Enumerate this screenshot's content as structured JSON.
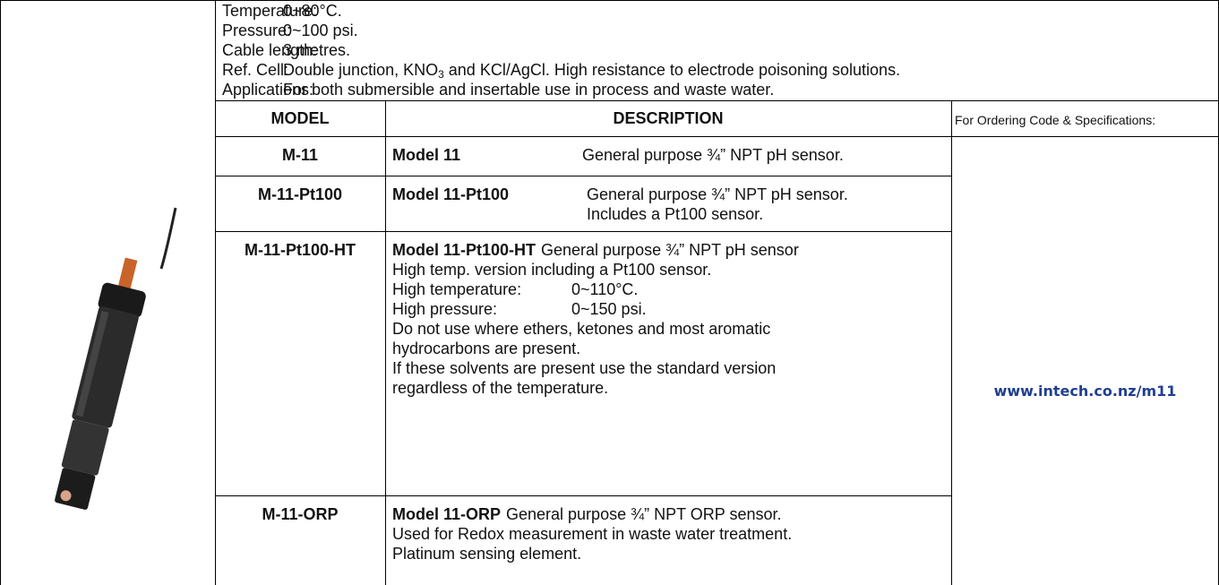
{
  "specs": [
    {
      "label": "Temperature:",
      "value": [
        "0~80°C."
      ]
    },
    {
      "label": "Pressure:",
      "value": [
        "0~100 psi."
      ]
    },
    {
      "label": "Cable length:",
      "value": [
        "3 metres."
      ]
    },
    {
      "label": "Ref. Cell:",
      "value": [
        "Double junction, KNO",
        "3",
        " and KCl/AgCl. High resistance to electrode poisoning solutions."
      ]
    },
    {
      "label": "Applications:",
      "value": [
        "For both submersible and insertable use in process and waste water."
      ]
    }
  ],
  "table": {
    "header": [
      "MODEL",
      "DESCRIPTION",
      "For Ordering Code & Specifications:"
    ],
    "rows": [
      {
        "model": "M-11",
        "name": "Model 11",
        "lines": [
          "General purpose ¾” NPT pH sensor."
        ]
      },
      {
        "model": "M-11-Pt100",
        "name": "Model 11-Pt100",
        "lines": [
          "General purpose ¾” NPT pH sensor.",
          "Includes a Pt100 sensor."
        ]
      },
      {
        "model": "M-11-Pt100-HT",
        "name": "Model 11-Pt100-HT",
        "text": "General purpose ¾” NPT pH sensor",
        "lines": [
          "High temp. version including a Pt100 sensor.",
          [
            "High temperature:",
            "0~110°C."
          ],
          [
            "High pressure:",
            "0~150 psi."
          ],
          "Do not use where ethers, ketones and most aromatic",
          "hydrocarbons are present.",
          "If these solvents are present use the standard version",
          "regardless of the temperature."
        ]
      },
      {
        "model": "M-11-ORP",
        "name": "Model 11-ORP",
        "text": "General purpose ¾” NPT ORP sensor.",
        "lines": [
          "Used for Redox measurement in waste water treatment.",
          "Platinum sensing element."
        ]
      }
    ],
    "link": "www.intech.co.nz/m11"
  }
}
